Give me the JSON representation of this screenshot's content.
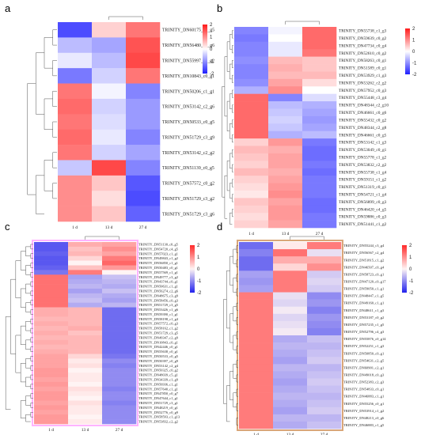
{
  "chart_data": [
    {
      "panel_label": "a",
      "type": "heatmap",
      "columns": [
        "1 d",
        "13 d",
        "27 d"
      ],
      "rows": [
        "TRINITY_DN60175_c0_g5",
        "TRINITY_DN56480_c0_g6",
        "TRINITY_DN55997_c1_g2",
        "TRINITY_DN10843_c0_g1",
        "TRINITY_DN50206_c1_g1",
        "TRINITY_DN53142_c2_g6",
        "TRINITY_DN50533_c0_g5",
        "TRINITY_DN51729_c3_g9",
        "TRINITY_DN53142_c2_g2",
        "TRINITY_DN51139_c0_g5",
        "TRINITY_DN57572_c0_g2",
        "TRINITY_DN51729_c3_g2",
        "TRINITY_DN51729_c3_g6"
      ],
      "values": [
        [
          -1.6,
          0.4,
          1.2
        ],
        [
          -0.6,
          -0.8,
          1.5
        ],
        [
          -0.2,
          -0.6,
          1.6
        ],
        [
          -1.2,
          -0.4,
          1.2
        ],
        [
          1.2,
          -0.1,
          -1.1
        ],
        [
          1.3,
          -0.4,
          -0.9
        ],
        [
          1.2,
          -0.3,
          -0.9
        ],
        [
          1.3,
          -0.2,
          -1.1
        ],
        [
          1.2,
          -0.4,
          -0.8
        ],
        [
          -0.5,
          1.6,
          -1.1
        ],
        [
          1.0,
          0.5,
          -1.5
        ],
        [
          1.0,
          0.3,
          -1.6
        ],
        [
          1.0,
          0.5,
          -1.4
        ]
      ],
      "legend": {
        "min": -2,
        "max": 2,
        "ticks": [
          "2",
          "1",
          "0",
          "-1",
          "-2"
        ]
      },
      "colors": {
        "high": "#ff1a1a",
        "mid": "#ffffff",
        "low": "#1f1fff"
      }
    },
    {
      "panel_label": "b",
      "type": "heatmap",
      "columns": [
        "1 d",
        "13 d",
        "27 d"
      ],
      "rows": [
        "TRINITY_DN55738_c1_g3",
        "TRINITY_DN59639_c0_g2",
        "TRINITY_DN47734_c0_g4",
        "TRINITY_DN52610_c0_g2",
        "TRINITY_DN58263_c0_g1",
        "TRINITY_DN51589_c0_g1",
        "TRINITY_DN53929_c1_g3",
        "TRINITY_DN53262_c2_g2",
        "TRINITY_DN57952_c0_g3",
        "TRINITY_DN55448_c3_g4",
        "TRINITY_DN48344_c2_g10",
        "TRINITY_DN46661_c0_g6",
        "TRINITY_DN55432_c0_g2",
        "TRINITY_DN48344_c2_g8",
        "TRINITY_DN46661_c0_g5",
        "TRINITY_DN53142_c1_g3",
        "TRINITY_DN53049_c0_g1",
        "TRINITY_DN55778_c1_g2",
        "TRINITY_DN53832_c2_g2",
        "TRINITY_DN55738_c1_g4",
        "TRINITY_DN59151_c1_g2",
        "TRINITY_DN51319_c0_g1",
        "TRINITY_DN54721_c1_g4",
        "TRINITY_DN56899_c0_g3",
        "TRINITY_DN46420_c4_g5",
        "TRINITY_DN59886_c0_g3",
        "TRINITY_DN51441_c1_g2"
      ],
      "values": [
        [
          -1.1,
          -0.1,
          1.3
        ],
        [
          -1.2,
          0.0,
          1.3
        ],
        [
          -1.1,
          -0.2,
          1.3
        ],
        [
          -1.1,
          -0.2,
          1.2
        ],
        [
          -1.0,
          0.6,
          0.5
        ],
        [
          -1.1,
          0.7,
          0.5
        ],
        [
          -1.1,
          0.6,
          0.6
        ],
        [
          -1.0,
          0.8,
          0.3
        ],
        [
          -0.7,
          1.0,
          0.0
        ],
        [
          1.3,
          -1.1,
          -0.3
        ],
        [
          1.3,
          -0.6,
          -0.7
        ],
        [
          1.3,
          -0.5,
          -0.8
        ],
        [
          1.3,
          -0.4,
          -0.9
        ],
        [
          1.3,
          -0.5,
          -0.8
        ],
        [
          1.3,
          -0.7,
          -0.6
        ],
        [
          0.4,
          0.9,
          -1.2
        ],
        [
          0.6,
          0.7,
          -1.3
        ],
        [
          0.5,
          0.8,
          -1.3
        ],
        [
          0.4,
          0.8,
          -1.2
        ],
        [
          0.6,
          0.7,
          -1.3
        ],
        [
          0.4,
          0.8,
          -1.2
        ],
        [
          0.3,
          0.9,
          -1.2
        ],
        [
          0.2,
          1.0,
          -1.2
        ],
        [
          0.5,
          0.8,
          -1.3
        ],
        [
          0.4,
          0.9,
          -1.3
        ],
        [
          0.3,
          0.9,
          -1.2
        ],
        [
          0.4,
          0.8,
          -1.2
        ]
      ],
      "legend": {
        "min": -2,
        "max": 2,
        "ticks": [
          "2",
          "1",
          "0",
          "-1",
          "-2"
        ]
      },
      "colors": {
        "high": "#ff1a1a",
        "mid": "#ffffff",
        "low": "#1f1fff"
      }
    },
    {
      "panel_label": "c",
      "type": "heatmap",
      "columns": [
        "1 d",
        "13 d",
        "27 d"
      ],
      "rows": [
        "TRINITY_DN51130_c0_g5",
        "TRINITY_DN54720_c4_g5",
        "TRINITY_DN57023_c1_g1",
        "TRINITY_DN49843_c1_g2",
        "TRINITY_DN56850_c1_g1",
        "TRINITY_DN50483_c0_g1",
        "TRINITY_DN57569_c1_g1",
        "TRINITY_DN49777_c3_g2",
        "TRINITY_DN43744_c0_g1",
        "TRINITY_DN50631_c1_g1",
        "TRINITY_DN56274_c2_g6",
        "TRINITY_DN48675_c3_g9",
        "TRINITY_DN58456_c0_g3",
        "TRINITY_DN51729_c3_g5",
        "TRINITY_DN53426_c1_g6",
        "TRINITY_DN59390_c1_g1",
        "TRINITY_DN58198_c1_g4",
        "TRINITY_DN57572_c0_g3",
        "TRINITY_DN58162_c1_g2",
        "TRINITY_DN51729_c3_g5",
        "TRINITY_DN49347_c2_g9",
        "TRINITY_DN10843_c0_g1",
        "TRINITY_DN42446_c0_g1",
        "TRINITY_DN55638_c0_g1",
        "TRINITY_DN50533_c0_g5",
        "TRINITY_DN50397_c0_g9",
        "TRINITY_DN53142_c2_g4",
        "TRINITY_DN50325_c0_g2",
        "TRINITY_DN48039_c5_g1",
        "TRINITY_DN34339_c1_g9",
        "TRINITY_DN56936_c1_g1",
        "TRINITY_DN57640_c1_g1",
        "TRINITY_DN47850_c0_g7",
        "TRINITY_DN47644_c1_g1",
        "TRINITY_DN51729_c3_g1",
        "TRINITY_DN48219_c0_g1",
        "TRINITY_DN52776_c0_g9",
        "TRINITY_DN58593_c1_g13",
        "TRINITY_DN53832_c2_g2"
      ],
      "values": [
        [
          -1.5,
          0.7,
          0.8
        ],
        [
          -1.5,
          0.5,
          1.0
        ],
        [
          -1.4,
          0.6,
          0.8
        ],
        [
          -1.5,
          0.3,
          1.2
        ],
        [
          -1.5,
          0.0,
          1.4
        ],
        [
          -1.4,
          0.5,
          0.9
        ],
        [
          -1.2,
          1.2,
          0.0
        ],
        [
          1.3,
          -0.8,
          -0.5
        ],
        [
          1.3,
          -0.7,
          -0.6
        ],
        [
          1.3,
          -0.6,
          -0.7
        ],
        [
          1.3,
          -0.8,
          -0.5
        ],
        [
          1.3,
          -0.6,
          -0.7
        ],
        [
          1.3,
          -0.5,
          -0.8
        ],
        [
          1.3,
          -0.7,
          -0.6
        ],
        [
          0.7,
          0.6,
          -1.3
        ],
        [
          0.7,
          0.6,
          -1.3
        ],
        [
          0.6,
          0.6,
          -1.3
        ],
        [
          0.7,
          0.6,
          -1.3
        ],
        [
          0.6,
          0.7,
          -1.3
        ],
        [
          0.7,
          0.5,
          -1.3
        ],
        [
          0.6,
          0.6,
          -1.3
        ],
        [
          0.7,
          0.6,
          -1.3
        ],
        [
          0.6,
          0.6,
          -1.3
        ],
        [
          0.7,
          0.6,
          -1.3
        ],
        [
          0.8,
          0.3,
          -1.2
        ],
        [
          0.8,
          0.1,
          -1.0
        ],
        [
          0.8,
          0.2,
          -1.1
        ],
        [
          0.9,
          0.0,
          -1.0
        ],
        [
          0.9,
          0.1,
          -1.0
        ],
        [
          0.8,
          0.1,
          -1.0
        ],
        [
          0.9,
          0.0,
          -1.0
        ],
        [
          0.8,
          0.2,
          -1.1
        ],
        [
          0.9,
          0.1,
          -1.0
        ],
        [
          0.9,
          0.0,
          -1.0
        ],
        [
          0.8,
          0.2,
          -1.1
        ],
        [
          0.9,
          0.1,
          -1.0
        ],
        [
          0.8,
          0.1,
          -1.0
        ],
        [
          0.9,
          0.0,
          -1.0
        ],
        [
          0.9,
          0.1,
          -1.0
        ]
      ],
      "legend": {
        "min": -2,
        "max": 2,
        "ticks": [
          "2",
          "1",
          "0",
          "-1",
          "-2"
        ]
      },
      "colors": {
        "high": "#ff2a2a",
        "mid": "#fff4f4",
        "low": "#2222ee",
        "frame": "#ffb3ff"
      }
    },
    {
      "panel_label": "d",
      "type": "heatmap",
      "columns": [
        "1 d",
        "13 d",
        "27 d"
      ],
      "rows": [
        "TRINITY_DN55244_c3_g4",
        "TRINITY_DN56567_c2_g4",
        "TRINITY_DN51815_c1_g2",
        "TRINITY_DN46507_c0_g4",
        "TRINITY_DN58723_c0_g1",
        "TRINITY_DN47120_c0_g17",
        "TRINITY_DN59050_c1_g1",
        "TRINITY_DN48447_c1_g5",
        "TRINITY_DN49160_c1_g1",
        "TRINITY_DN48611_c1_g3",
        "TRINITY_DN53187_c0_g2",
        "TRINITY_DN57235_c1_g5",
        "TRINITY_DN52796_c4_g3",
        "TRINITY_DN55876_c0_g14",
        "TRINITY_DN52251_c1_g3",
        "TRINITY_DN50850_c0_g1",
        "TRINITY_DN54631_c2_g5",
        "TRINITY_DN60901_c2_g1",
        "TRINITY_DN49018_c0_g3",
        "TRINITY_DN52383_c2_g3",
        "TRINITY_DN54833_c0_g1",
        "TRINITY_DN46883_c1_g1",
        "TRINITY_DN55256_c0_g1",
        "TRINITY_DN53914_c1_g2",
        "TRINITY_DN48213_c0_g6",
        "TRINITY_DN46883_c1_g5"
      ],
      "values": [
        [
          -1.3,
          0.1,
          1.2
        ],
        [
          -1.1,
          1.3,
          -0.2
        ],
        [
          -1.3,
          0.7,
          0.7
        ],
        [
          -1.3,
          0.3,
          1.0
        ],
        [
          -0.8,
          1.2,
          -0.4
        ],
        [
          -0.9,
          1.2,
          -0.3
        ],
        [
          -0.8,
          1.2,
          -0.4
        ],
        [
          1.2,
          -0.2,
          -1.0
        ],
        [
          1.2,
          -0.3,
          -0.9
        ],
        [
          1.2,
          -0.1,
          -1.1
        ],
        [
          1.2,
          -0.3,
          -0.9
        ],
        [
          1.2,
          -0.2,
          -1.0
        ],
        [
          1.2,
          -0.1,
          -1.1
        ],
        [
          1.2,
          -0.7,
          -0.5
        ],
        [
          1.2,
          -0.6,
          -0.6
        ],
        [
          1.2,
          -0.7,
          -0.5
        ],
        [
          1.2,
          -0.8,
          -0.4
        ],
        [
          1.2,
          -0.6,
          -0.6
        ],
        [
          1.2,
          -0.7,
          -0.5
        ],
        [
          1.2,
          -0.8,
          -0.4
        ],
        [
          1.2,
          -0.7,
          -0.5
        ],
        [
          1.2,
          -0.6,
          -0.6
        ],
        [
          1.2,
          -0.7,
          -0.5
        ],
        [
          1.2,
          -0.8,
          -0.4
        ],
        [
          1.2,
          -0.6,
          -0.6
        ],
        [
          1.2,
          -0.7,
          -0.5
        ]
      ],
      "legend": {
        "min": -2,
        "max": 2,
        "ticks": [
          "2",
          "1",
          "0",
          "-1",
          "-2"
        ]
      },
      "colors": {
        "high": "#ff2a2a",
        "mid": "#fff4f4",
        "low": "#2222ee",
        "frame": "#d9a679"
      }
    }
  ]
}
